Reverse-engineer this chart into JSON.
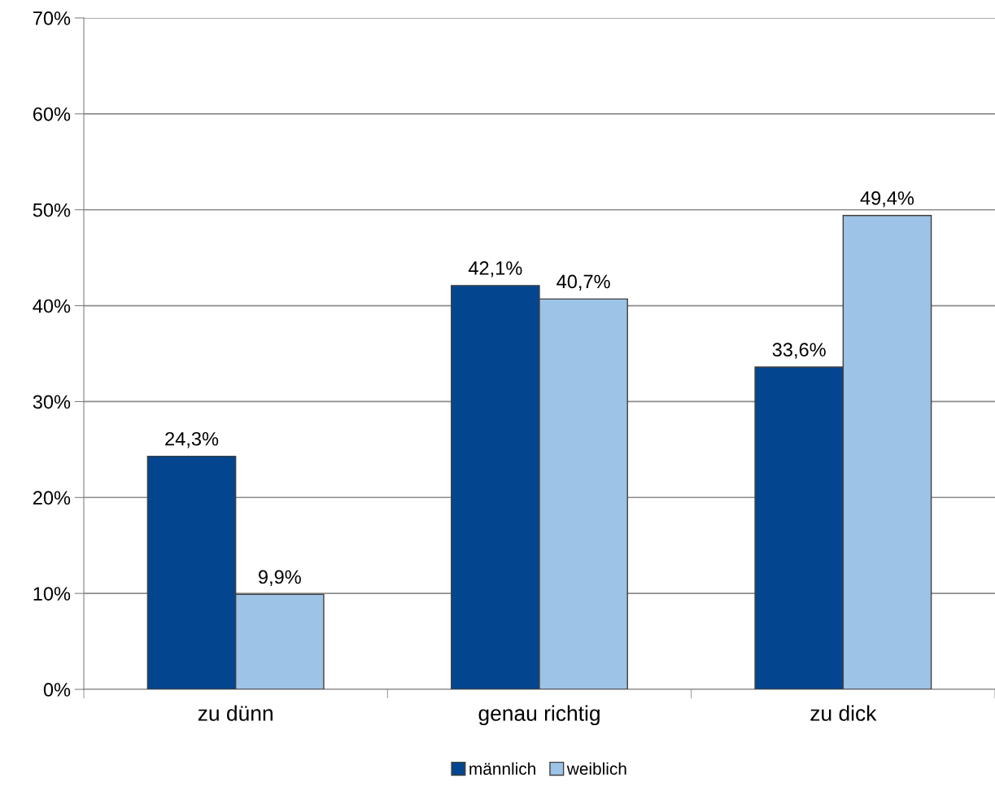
{
  "chart_data": {
    "type": "bar",
    "categories": [
      "zu dünn",
      "genau richtig",
      "zu dick"
    ],
    "series": [
      {
        "name": "männlich",
        "color": "#03468f",
        "values": [
          24.3,
          42.1,
          33.6
        ],
        "value_labels": [
          "24,3%",
          "42,1%",
          "33,6%"
        ]
      },
      {
        "name": "weiblich",
        "color": "#9dc3e6",
        "values": [
          9.9,
          40.7,
          49.4
        ],
        "value_labels": [
          "9,9%",
          "40,7%",
          "49,4%"
        ]
      }
    ],
    "ylim": [
      0,
      70
    ],
    "yticks": [
      {
        "value": 0,
        "label": "0%"
      },
      {
        "value": 10,
        "label": "10%"
      },
      {
        "value": 20,
        "label": "20%"
      },
      {
        "value": 30,
        "label": "30%"
      },
      {
        "value": 40,
        "label": "40%"
      },
      {
        "value": 50,
        "label": "50%"
      },
      {
        "value": 60,
        "label": "60%"
      },
      {
        "value": 70,
        "label": "70%"
      }
    ],
    "grid": "y",
    "legend": "bottom"
  }
}
